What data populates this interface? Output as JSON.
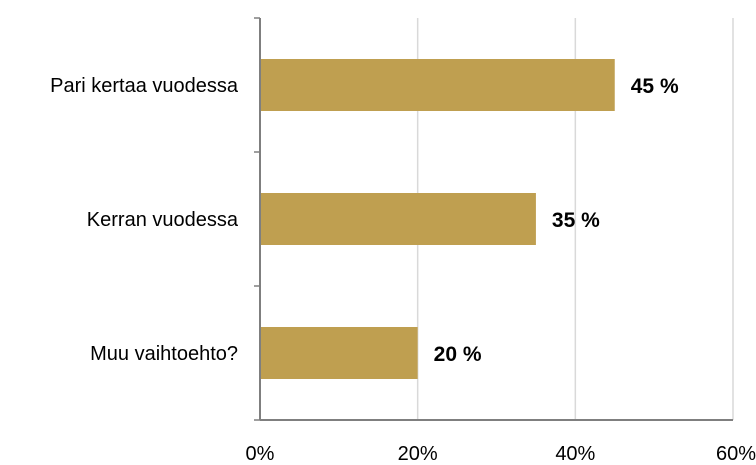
{
  "chart_data": {
    "type": "bar",
    "orientation": "horizontal",
    "categories": [
      "Pari kertaa vuodessa",
      "Kerran vuodessa",
      "Muu vaihtoehto?"
    ],
    "values": [
      45,
      35,
      20
    ],
    "data_labels": [
      "45 %",
      "35 %",
      "20 %"
    ],
    "unit": "%",
    "xlim": [
      0,
      60
    ],
    "xticks": [
      0,
      20,
      40,
      60
    ],
    "xtick_labels": [
      "0%",
      "20%",
      "40%",
      "60%"
    ],
    "grid": "vertical",
    "legend": "none",
    "bar_color": "#BF9F50",
    "grid_color": "#D9D9D9",
    "axis_color": "#7F7F7F"
  }
}
